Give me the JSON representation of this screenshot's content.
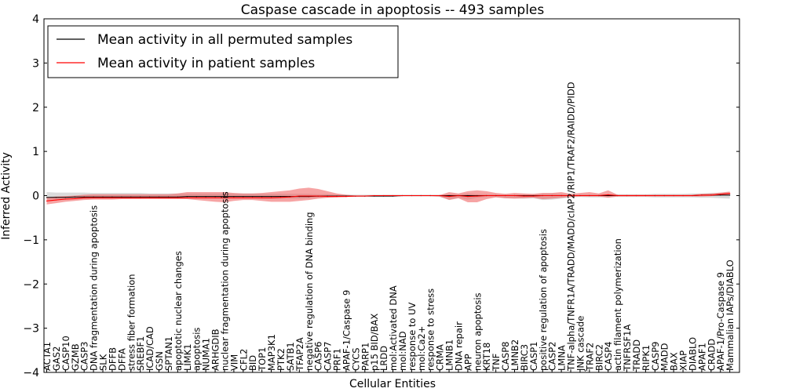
{
  "chart_data": {
    "type": "line",
    "title": "Caspase cascade in apoptosis -- 493 samples",
    "xlabel": "Cellular Entities",
    "ylabel": "Inferred Activity",
    "ylim": [
      -4,
      4
    ],
    "yticks": [
      "4",
      "3",
      "2",
      "1",
      "0",
      "−1",
      "−2",
      "−3",
      "−4"
    ],
    "ytick_values": [
      4,
      3,
      2,
      1,
      0,
      -1,
      -2,
      -3,
      -4
    ],
    "grid": false,
    "legend_position": "top-left",
    "categories": [
      "ACTA1",
      "GAS2",
      "CASP10",
      "GZMB",
      "CASP3",
      "DNA fragmentation during apoptosis",
      "SLK",
      "DFFB",
      "DFFA",
      "stress fiber formation",
      "SREBF1",
      "ICAD/CAD",
      "GSN",
      "SPTAN1",
      "apoptotic nuclear changes",
      "LIMK1",
      "apoptosis",
      "NUMA1",
      "ARHGDIB",
      "nuclear fragmentation during apoptosis",
      "VIM",
      "CFL2",
      "BID",
      "TOP1",
      "MAP3K1",
      "PTK2",
      "SATB1",
      "TFAP2A",
      "negative regulation of DNA binding",
      "CASP6",
      "CASP7",
      "PRF1",
      "APAF-1/Caspase 9",
      "CYCS",
      "PARP1",
      "p15 BID/BAX",
      "LRDD",
      "mol:Activated DNA",
      "mol:NAD",
      "response to UV",
      "mol:Ca2+",
      "response to stress",
      "CRMA",
      "LMNB1",
      "DNA repair",
      "APP",
      "neuron apoptosis",
      "KRT18",
      "TNF",
      "CASP8",
      "LMNB2",
      "BIRC3",
      "CASP1",
      "positive regulation of apoptosis",
      "CASP2",
      "LMNA",
      "TNF-alpha/TNFR1A/TRADD/MADD/cIAP2/RIP1/TRAF2/RAIDD/PIDD",
      "JNK cascade",
      "TRAF2",
      "BIRC2",
      "CASP4",
      "actin filament polymerization",
      "TNFRSF1A",
      "TRADD",
      "RIPK1",
      "CASP9",
      "MADD",
      "BAX",
      "XIAP",
      "DIABLO",
      "APAF1",
      "CRADD",
      "APAF-1/Pro-Caspase 9",
      "Mammalian IAPs/DIABLO"
    ],
    "series": [
      {
        "name": "Mean activity in all permuted samples",
        "color": "#000000",
        "values": [
          -0.04,
          -0.04,
          -0.04,
          -0.03,
          -0.03,
          -0.03,
          -0.03,
          -0.03,
          -0.03,
          -0.03,
          -0.03,
          -0.03,
          -0.03,
          -0.03,
          -0.03,
          -0.02,
          -0.02,
          -0.02,
          -0.02,
          -0.02,
          -0.02,
          -0.02,
          -0.02,
          -0.02,
          -0.02,
          -0.02,
          -0.02,
          -0.02,
          -0.02,
          -0.01,
          -0.01,
          -0.01,
          -0.01,
          -0.01,
          -0.01,
          -0.01,
          -0.01,
          -0.01,
          0,
          0,
          0,
          0,
          0,
          0,
          0,
          0,
          0,
          0,
          0,
          0,
          0,
          0,
          0,
          0,
          0,
          0,
          0,
          0,
          0,
          0,
          0,
          0,
          0,
          0,
          0,
          0,
          0,
          0,
          0,
          0,
          0.01,
          0.01,
          0.01,
          0.01
        ],
        "band_lower": [
          -0.09,
          -0.08,
          -0.08,
          -0.08,
          -0.08,
          -0.07,
          -0.07,
          -0.07,
          -0.07,
          -0.07,
          -0.07,
          -0.06,
          -0.06,
          -0.06,
          -0.06,
          -0.06,
          -0.06,
          -0.06,
          -0.06,
          -0.06,
          -0.06,
          -0.06,
          -0.06,
          -0.07,
          -0.07,
          -0.07,
          -0.07,
          -0.07,
          -0.06,
          -0.05,
          -0.04,
          -0.03,
          -0.02,
          -0.02,
          -0.02,
          -0.02,
          -0.02,
          -0.02,
          -0.02,
          -0.02,
          -0.02,
          -0.02,
          -0.03,
          -0.09,
          -0.05,
          -0.09,
          -0.05,
          -0.03,
          -0.03,
          -0.06,
          -0.06,
          -0.07,
          -0.06,
          -0.1,
          -0.09,
          -0.07,
          -0.04,
          -0.03,
          -0.04,
          -0.04,
          -0.03,
          -0.03,
          -0.03,
          -0.03,
          -0.03,
          -0.04,
          -0.04,
          -0.04,
          -0.04,
          -0.04,
          -0.05,
          -0.05,
          -0.06,
          -0.07
        ],
        "band_upper": [
          0.08,
          0.07,
          0.07,
          0.07,
          0.07,
          0.06,
          0.06,
          0.06,
          0.06,
          0.06,
          0.06,
          0.05,
          0.05,
          0.05,
          0.05,
          0.05,
          0.05,
          0.05,
          0.05,
          0.05,
          0.05,
          0.05,
          0.05,
          0.04,
          0.04,
          0.04,
          0.04,
          0.04,
          0.04,
          0.03,
          0.03,
          0.02,
          0.02,
          0.02,
          0.02,
          0.02,
          0.02,
          0.02,
          0.02,
          0.02,
          0.02,
          0.02,
          0.02,
          0.03,
          0.03,
          0.05,
          0.03,
          0.03,
          0.03,
          0.03,
          0.03,
          0.03,
          0.03,
          0.05,
          0.05,
          0.04,
          0.03,
          0.03,
          0.03,
          0.03,
          0.03,
          0.03,
          0.03,
          0.03,
          0.03,
          0.04,
          0.04,
          0.04,
          0.04,
          0.05,
          0.05,
          0.06,
          0.06,
          0.07
        ]
      },
      {
        "name": "Mean activity in patient samples",
        "color": "#ff0000",
        "values": [
          -0.12,
          -0.1,
          -0.08,
          -0.07,
          -0.05,
          -0.05,
          -0.05,
          -0.05,
          -0.05,
          -0.05,
          -0.05,
          -0.05,
          -0.05,
          -0.05,
          -0.05,
          -0.05,
          -0.05,
          -0.05,
          -0.05,
          -0.05,
          -0.05,
          -0.05,
          -0.05,
          -0.05,
          -0.05,
          -0.04,
          -0.03,
          -0.01,
          -0.01,
          -0.01,
          -0.02,
          -0.02,
          -0.02,
          -0.01,
          -0.01,
          0,
          0,
          0,
          0,
          0,
          0,
          0,
          0,
          -0.02,
          0,
          -0.02,
          -0.01,
          0,
          0,
          0,
          0,
          -0.01,
          -0.01,
          0,
          0,
          0,
          0,
          0,
          0,
          0,
          0.02,
          0,
          0,
          0,
          0,
          0,
          0,
          0,
          0,
          0,
          0.01,
          0.01,
          0.03,
          0.05
        ],
        "band_lower": [
          -0.2,
          -0.17,
          -0.14,
          -0.12,
          -0.1,
          -0.09,
          -0.09,
          -0.09,
          -0.08,
          -0.08,
          -0.08,
          -0.08,
          -0.08,
          -0.08,
          -0.08,
          -0.08,
          -0.1,
          -0.12,
          -0.14,
          -0.15,
          -0.12,
          -0.1,
          -0.1,
          -0.12,
          -0.14,
          -0.14,
          -0.14,
          -0.12,
          -0.1,
          -0.07,
          -0.05,
          -0.04,
          -0.03,
          -0.02,
          -0.01,
          -0.01,
          -0.01,
          -0.01,
          -0.01,
          -0.01,
          -0.01,
          -0.01,
          -0.02,
          -0.1,
          -0.06,
          -0.15,
          -0.15,
          -0.08,
          -0.04,
          -0.06,
          -0.07,
          -0.06,
          -0.05,
          -0.08,
          -0.07,
          -0.05,
          -0.03,
          -0.02,
          -0.02,
          -0.02,
          -0.05,
          -0.02,
          -0.02,
          -0.02,
          -0.02,
          -0.02,
          -0.02,
          -0.02,
          -0.02,
          -0.02,
          -0.02,
          -0.01,
          0.01,
          0.02
        ],
        "band_upper": [
          -0.04,
          -0.02,
          -0.01,
          0,
          0.02,
          0.03,
          0.03,
          0.03,
          0.03,
          0.03,
          0.03,
          0.03,
          0.03,
          0.03,
          0.05,
          0.08,
          0.08,
          0.08,
          0.08,
          0.08,
          0.06,
          0.05,
          0.05,
          0.06,
          0.08,
          0.1,
          0.12,
          0.16,
          0.18,
          0.15,
          0.1,
          0.05,
          0.02,
          0,
          0,
          0,
          0.01,
          0.01,
          0.01,
          0.01,
          0.01,
          0.01,
          0.01,
          0.08,
          0.05,
          0.1,
          0.12,
          0.1,
          0.06,
          0.04,
          0.06,
          0.05,
          0.04,
          0.06,
          0.06,
          0.08,
          0.04,
          0.06,
          0.08,
          0.05,
          0.12,
          0.02,
          0.02,
          0.02,
          0.02,
          0.02,
          0.02,
          0.02,
          0.02,
          0.02,
          0.04,
          0.05,
          0.07,
          0.09
        ]
      }
    ]
  }
}
